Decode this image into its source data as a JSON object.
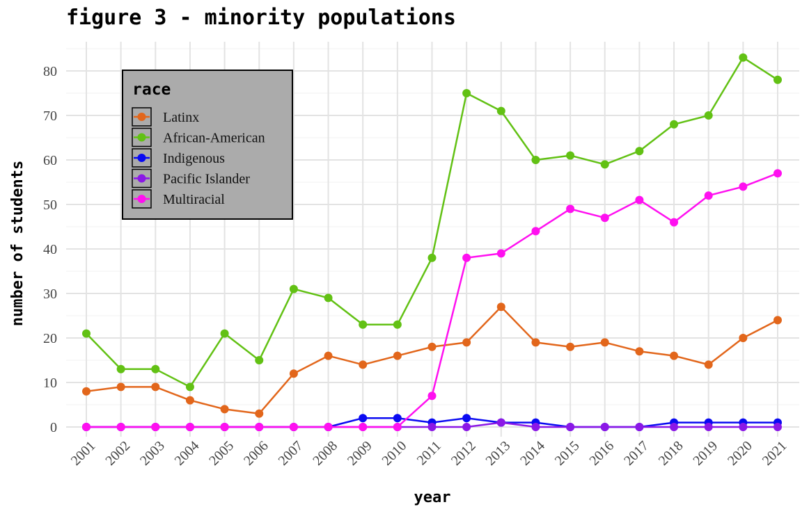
{
  "chart_data": {
    "type": "line",
    "title": "figure 3 - minority populations",
    "xlabel": "year",
    "ylabel": "number of students",
    "ylim": [
      -2,
      86
    ],
    "y_ticks": [
      0,
      10,
      20,
      30,
      40,
      50,
      60,
      70,
      80
    ],
    "grid": true,
    "legend": {
      "title": "race",
      "position": "top-left"
    },
    "x": [
      "2001",
      "2002",
      "2003",
      "2004",
      "2005",
      "2006",
      "2007",
      "2008",
      "2009",
      "2010",
      "2011",
      "2012",
      "2013",
      "2014",
      "2015",
      "2016",
      "2017",
      "2018",
      "2019",
      "2020",
      "2021"
    ],
    "series": [
      {
        "name": "Latinx",
        "color": "#E2661B",
        "values": [
          8,
          9,
          9,
          6,
          4,
          3,
          12,
          16,
          14,
          16,
          18,
          19,
          27,
          19,
          18,
          19,
          17,
          16,
          14,
          20,
          24
        ]
      },
      {
        "name": "African-American",
        "color": "#62C114",
        "values": [
          21,
          13,
          13,
          9,
          21,
          15,
          31,
          29,
          23,
          23,
          38,
          75,
          71,
          60,
          61,
          59,
          62,
          68,
          70,
          83,
          78
        ]
      },
      {
        "name": "Indigenous",
        "color": "#0A0AF2",
        "values": [
          0,
          0,
          0,
          0,
          0,
          0,
          0,
          0,
          2,
          2,
          1,
          2,
          1,
          1,
          0,
          0,
          0,
          1,
          1,
          1,
          1
        ]
      },
      {
        "name": "Pacific Islander",
        "color": "#8B18E6",
        "values": [
          0,
          0,
          0,
          0,
          0,
          0,
          0,
          0,
          0,
          0,
          0,
          0,
          1,
          0,
          0,
          0,
          0,
          0,
          0,
          0,
          0
        ]
      },
      {
        "name": "Multiracial",
        "color": "#FF10F0",
        "values": [
          0,
          0,
          0,
          0,
          0,
          0,
          0,
          0,
          0,
          0,
          7,
          38,
          39,
          44,
          49,
          47,
          51,
          46,
          52,
          54,
          57
        ]
      }
    ]
  }
}
